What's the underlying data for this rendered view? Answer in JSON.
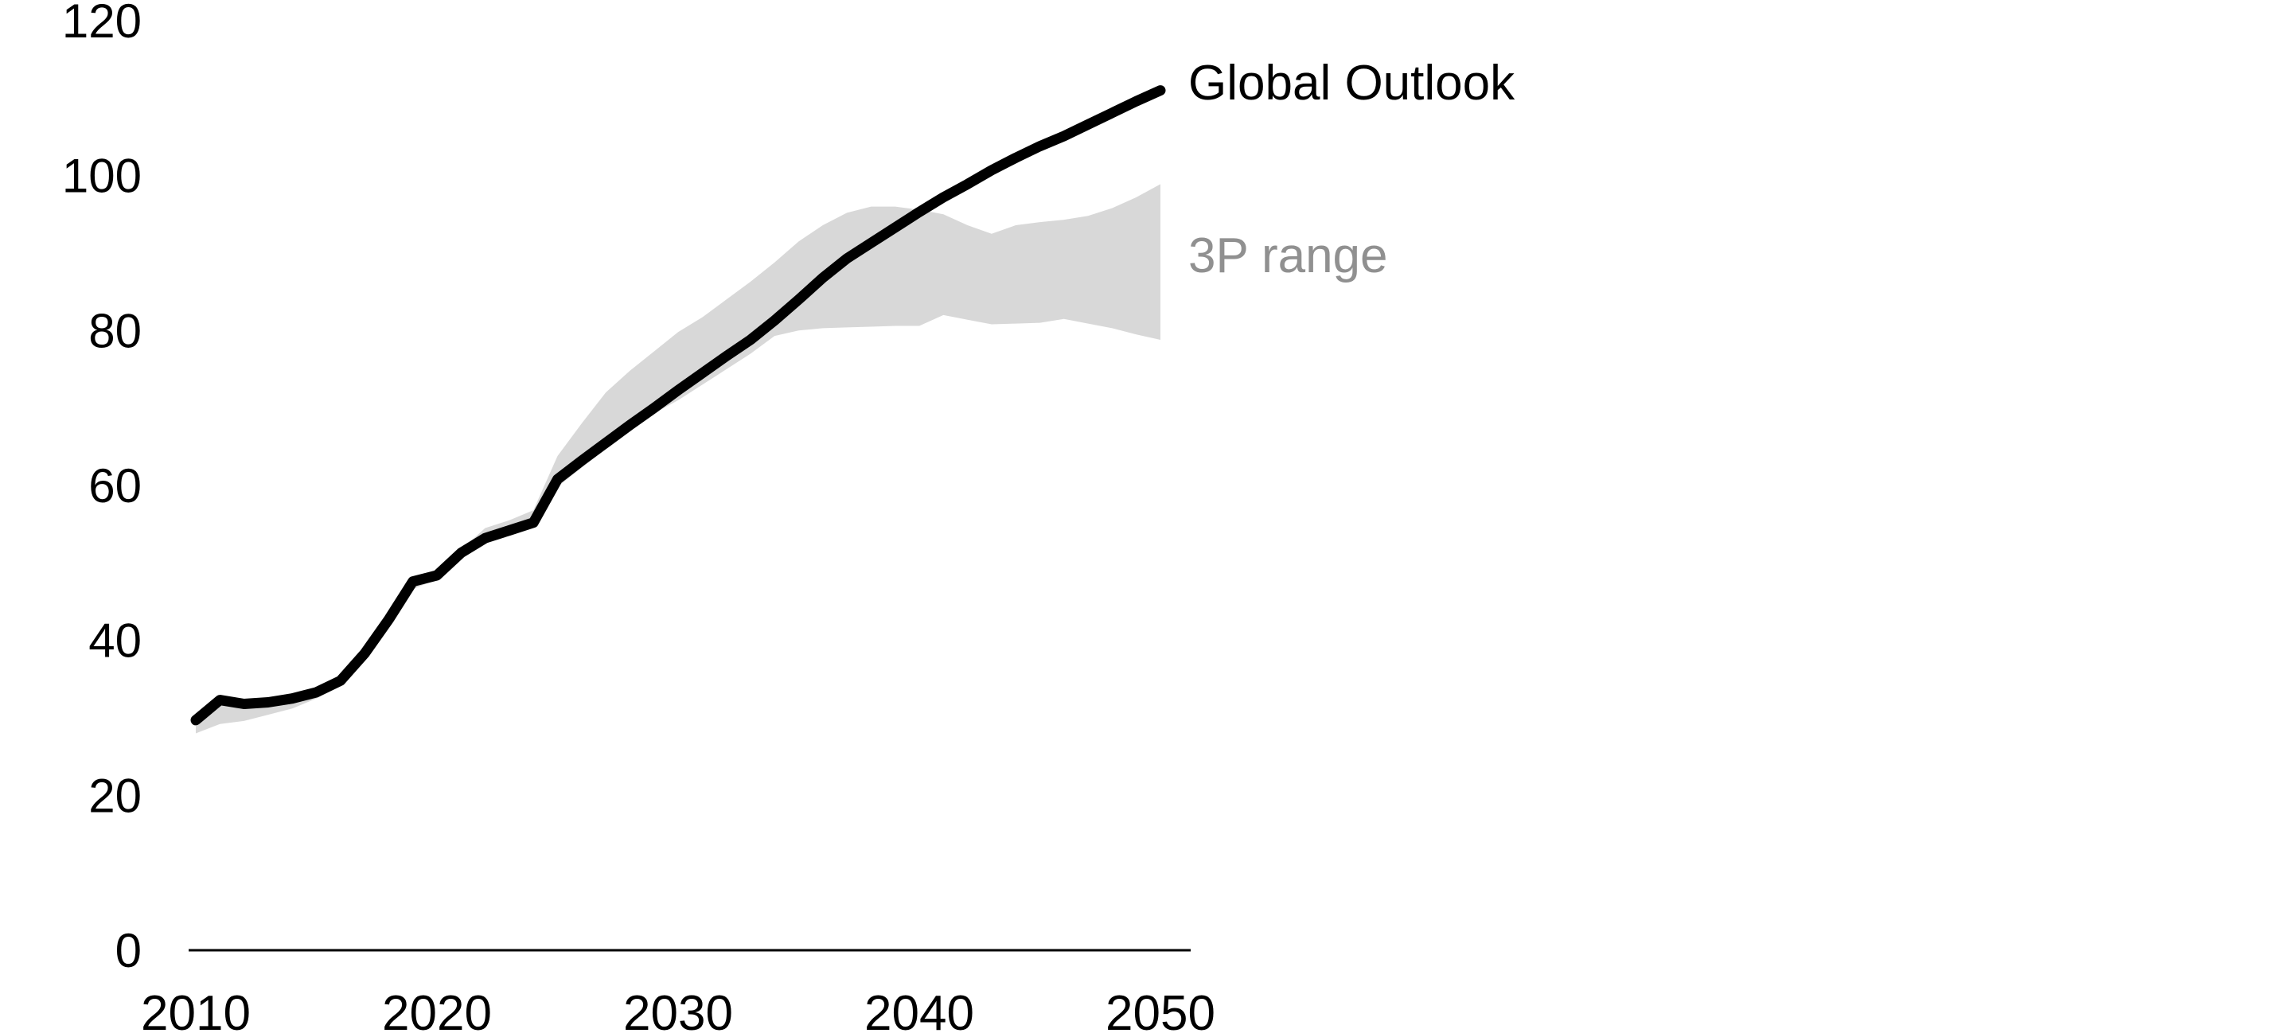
{
  "chart_data": {
    "type": "line",
    "title": "",
    "xlabel": "",
    "ylabel": "",
    "grid": false,
    "legend_position": "inline-right-annotations",
    "xlim": [
      2010,
      2050
    ],
    "ylim": [
      0,
      120
    ],
    "x_ticks": [
      2010,
      2020,
      2030,
      2040,
      2050
    ],
    "y_ticks": [
      0,
      20,
      40,
      60,
      80,
      100,
      120
    ],
    "x": [
      2010,
      2011,
      2012,
      2013,
      2014,
      2015,
      2016,
      2017,
      2018,
      2019,
      2020,
      2021,
      2022,
      2023,
      2024,
      2025,
      2026,
      2027,
      2028,
      2029,
      2030,
      2031,
      2032,
      2033,
      2034,
      2035,
      2036,
      2037,
      2038,
      2039,
      2040,
      2041,
      2042,
      2043,
      2044,
      2045,
      2046,
      2047,
      2048,
      2049,
      2050
    ],
    "series": [
      {
        "name": "Global Outlook",
        "kind": "line",
        "color": "#000000",
        "values": [
          29.7,
          32.3,
          31.8,
          32.0,
          32.5,
          33.3,
          34.8,
          38.3,
          42.7,
          47.6,
          48.4,
          51.3,
          53.2,
          54.2,
          55.2,
          60.8,
          63.2,
          65.5,
          67.8,
          70.0,
          72.3,
          74.5,
          76.7,
          78.8,
          81.3,
          84.0,
          86.8,
          89.3,
          91.3,
          93.3,
          95.3,
          97.2,
          98.9,
          100.7,
          102.3,
          103.8,
          105.1,
          106.6,
          108.1,
          109.6,
          111.0
        ]
      },
      {
        "name": "3P range",
        "kind": "band",
        "color": "#d8d8d8",
        "upper": [
          30.2,
          32.6,
          32.3,
          32.6,
          33.2,
          33.9,
          35.2,
          38.6,
          43.0,
          47.9,
          48.8,
          51.7,
          54.5,
          55.5,
          56.8,
          63.8,
          68.0,
          72.0,
          74.8,
          77.3,
          79.8,
          81.7,
          84.0,
          86.3,
          88.8,
          91.5,
          93.6,
          95.2,
          96.0,
          96.0,
          95.6,
          95.0,
          93.6,
          92.5,
          93.6,
          94.0,
          94.3,
          94.8,
          95.8,
          97.2,
          98.9
        ],
        "lower": [
          28.0,
          29.2,
          29.6,
          30.4,
          31.2,
          32.5,
          34.3,
          37.8,
          42.2,
          46.6,
          47.9,
          50.8,
          52.8,
          53.8,
          54.8,
          59.8,
          62.3,
          64.8,
          67.2,
          69.3,
          71.0,
          73.0,
          75.0,
          77.0,
          79.3,
          80.0,
          80.3,
          80.4,
          80.5,
          80.6,
          80.6,
          82.0,
          81.4,
          80.8,
          80.9,
          81.0,
          81.5,
          80.9,
          80.3,
          79.5,
          78.8
        ]
      }
    ],
    "annotations": [
      {
        "text": "Global Outlook",
        "color": "#000000",
        "anchor_year": 2050,
        "anchor_value": 110.5
      },
      {
        "text": "3P range",
        "color": "#909090",
        "anchor_year": 2050,
        "anchor_value": 89.5
      }
    ]
  }
}
